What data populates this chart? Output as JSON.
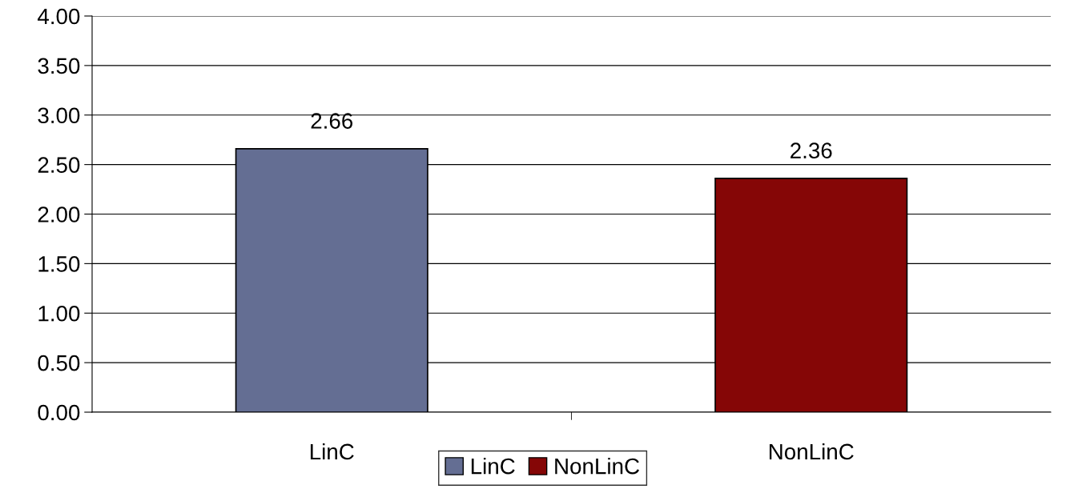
{
  "chart_data": {
    "type": "bar",
    "categories": [
      "LinC",
      "NonLinC"
    ],
    "series": [
      {
        "name": "LinC",
        "color": "#646e93",
        "values": [
          2.66,
          null
        ]
      },
      {
        "name": "NonLinC",
        "color": "#850606",
        "values": [
          null,
          2.36
        ]
      }
    ],
    "ylim": [
      0,
      4
    ],
    "yticks": [
      {
        "value": 0,
        "label": "0.00"
      },
      {
        "value": 0.5,
        "label": "0.50"
      },
      {
        "value": 1,
        "label": "1.00"
      },
      {
        "value": 1.5,
        "label": "1.50"
      },
      {
        "value": 2,
        "label": "2.00"
      },
      {
        "value": 2.5,
        "label": "2.50"
      },
      {
        "value": 3,
        "label": "3.00"
      },
      {
        "value": 3.5,
        "label": "3.50"
      },
      {
        "value": 4,
        "label": "4.00"
      }
    ],
    "grid": "y",
    "legend": "bottom",
    "data_labels": true
  }
}
